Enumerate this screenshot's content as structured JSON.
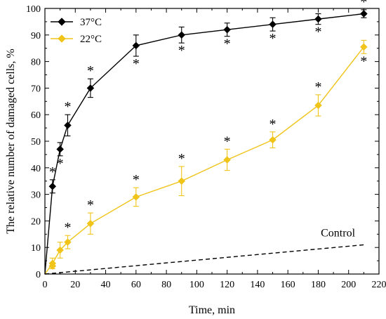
{
  "chart_data": {
    "type": "line",
    "xlabel": "Time, min",
    "ylabel": "The relative number of damaged cells, %",
    "xlim": [
      0,
      220
    ],
    "ylim": [
      0,
      100
    ],
    "xticks": [
      0,
      10,
      20,
      30,
      40,
      50,
      60,
      70,
      80,
      90,
      100,
      110,
      120,
      130,
      140,
      150,
      160,
      170,
      180,
      190,
      200,
      210,
      220
    ],
    "yticks": [
      0,
      10,
      20,
      30,
      40,
      50,
      60,
      70,
      80,
      90,
      100
    ],
    "grid": false,
    "legend_position": "top-left",
    "series": [
      {
        "name": "37°C",
        "color": "#000000",
        "marker": "diamond",
        "x": [
          0,
          5,
          10,
          15,
          30,
          60,
          90,
          120,
          150,
          180,
          210
        ],
        "y": [
          0,
          33,
          47,
          56,
          70,
          86,
          90,
          92,
          94,
          96,
          98
        ],
        "err": [
          0,
          2.5,
          2.5,
          4,
          3.5,
          4,
          3,
          2.5,
          2.5,
          2,
          1.5
        ],
        "significant": [
          false,
          true,
          true,
          true,
          true,
          true,
          true,
          true,
          true,
          true,
          true
        ],
        "star_position": [
          "",
          "above",
          "below",
          "above",
          "above",
          "below",
          "below",
          "below",
          "below",
          "below",
          "above"
        ]
      },
      {
        "name": "22°C",
        "color": "#F0C419",
        "marker": "diamond",
        "x": [
          0,
          5,
          10,
          15,
          30,
          60,
          90,
          120,
          150,
          180,
          210
        ],
        "y": [
          0,
          4,
          9,
          12,
          19,
          29,
          35,
          43,
          50.5,
          63.5,
          85.5
        ],
        "err": [
          0,
          2,
          3,
          2.5,
          4,
          3.5,
          5.5,
          4,
          3,
          4,
          2.5
        ],
        "significant": [
          false,
          false,
          false,
          true,
          true,
          true,
          true,
          true,
          true,
          true,
          true
        ],
        "star_position": [
          "",
          "",
          "",
          "above",
          "above",
          "above",
          "above",
          "above",
          "above",
          "above",
          "below"
        ]
      },
      {
        "name": "Control",
        "color": "#000000",
        "style": "dashed",
        "x": [
          0,
          210
        ],
        "y": [
          0,
          11
        ]
      }
    ],
    "extra_points": [
      {
        "series": "22°C",
        "x": 5,
        "y": 3
      }
    ],
    "annotations": [
      {
        "text": "Control",
        "x": 193,
        "y": 15.5
      },
      {
        "text": "*",
        "meaning": "significance marker"
      }
    ]
  }
}
